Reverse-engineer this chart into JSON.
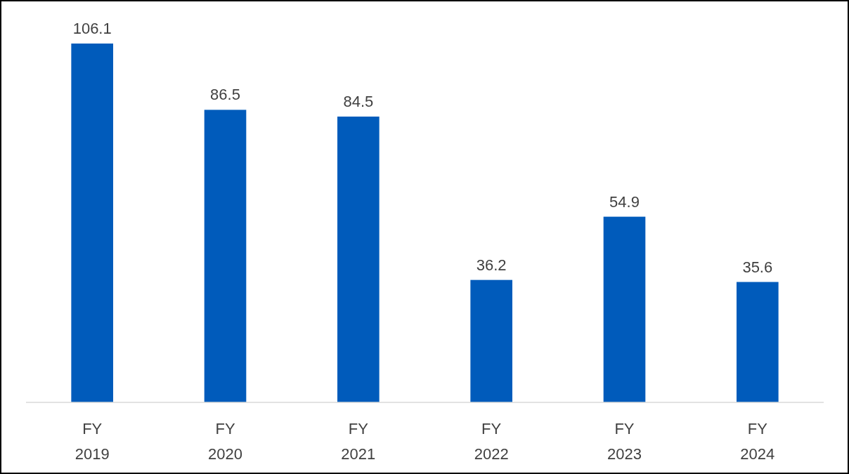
{
  "chart_data": {
    "type": "bar",
    "categories": [
      "FY 2019",
      "FY 2020",
      "FY 2021",
      "FY 2022",
      "FY 2023",
      "FY 2024"
    ],
    "values": [
      106.1,
      86.5,
      84.5,
      36.2,
      54.9,
      35.6
    ],
    "color": "#005bbb",
    "data_labels": true
  }
}
